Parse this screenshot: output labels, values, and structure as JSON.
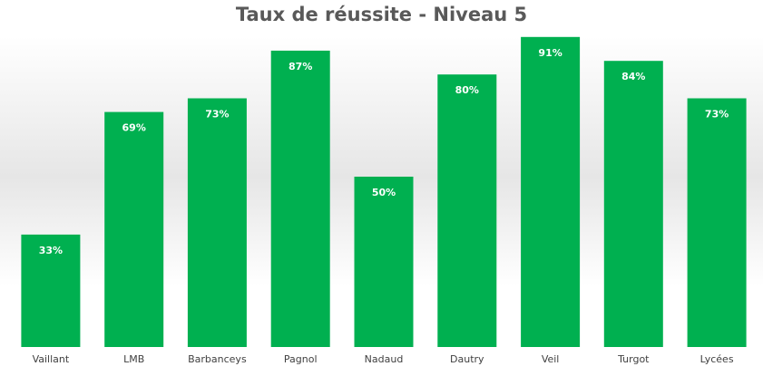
{
  "chart_data": {
    "type": "bar",
    "title": "Taux de réussite - Niveau 5",
    "categories": [
      "Vaillant",
      "LMB",
      "Barbanceys",
      "Pagnol",
      "Nadaud",
      "Dautry",
      "Veil",
      "Turgot",
      "Lycées"
    ],
    "values": [
      33,
      69,
      73,
      87,
      50,
      80,
      91,
      84,
      73
    ],
    "value_labels": [
      "33%",
      "69%",
      "73%",
      "87%",
      "50%",
      "80%",
      "91%",
      "84%",
      "73%"
    ],
    "xlabel": "",
    "ylabel": "",
    "ylim": [
      0,
      100
    ],
    "grid": false,
    "legend": "none",
    "colors": {
      "bar": "#00b050",
      "title": "#595959",
      "axis_text": "#404040"
    }
  }
}
